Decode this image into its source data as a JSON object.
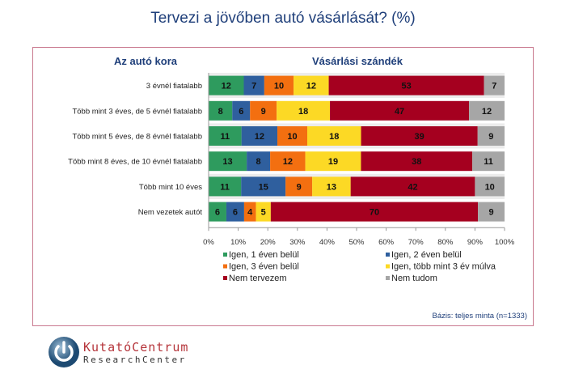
{
  "chart_data": {
    "type": "bar",
    "orientation": "horizontal",
    "stacked": true,
    "title": "Tervezi a jövőben autó vásárlását? (%)",
    "category_header": "Az autó kora",
    "value_header": "Vásárlási szándék",
    "categories": [
      "3 évnél fiatalabb",
      "Több mint 3 éves, de 5 évnél fiatalabb",
      "Több mint 5 éves, de 8 évnél fiatalabb",
      "Több mint 8 éves, de 10 évnél fiatalabb",
      "Több mint 10 éves",
      "Nem vezetek autót"
    ],
    "series": [
      {
        "name": "Igen, 1 éven belül",
        "color": "#2e9b5e",
        "values": [
          12,
          8,
          11,
          13,
          11,
          6
        ]
      },
      {
        "name": "Igen, 2 éven belül",
        "color": "#2f5f9e",
        "values": [
          7,
          6,
          12,
          8,
          15,
          6
        ]
      },
      {
        "name": "Igen, 3 éven belül",
        "color": "#f36f10",
        "values": [
          10,
          9,
          10,
          12,
          9,
          4
        ]
      },
      {
        "name": "Igen, több mint 3 év múlva",
        "color": "#fcd925",
        "values": [
          12,
          18,
          18,
          19,
          13,
          5
        ]
      },
      {
        "name": "Nem tervezem",
        "color": "#a5001f",
        "values": [
          53,
          47,
          39,
          38,
          42,
          70
        ]
      },
      {
        "name": "Nem tudom",
        "color": "#a6a6a6",
        "values": [
          7,
          12,
          9,
          11,
          10,
          9
        ]
      }
    ],
    "xticks": [
      "0%",
      "10%",
      "20%",
      "30%",
      "40%",
      "50%",
      "60%",
      "70%",
      "80%",
      "90%",
      "100%"
    ],
    "xlim": [
      0,
      100
    ],
    "legend_placement": "bottom",
    "footnote": "Bázis: teljes minta (n=1333)"
  },
  "logo": {
    "line1": "KutatóCentrum",
    "line2": "ResearchCenter"
  }
}
